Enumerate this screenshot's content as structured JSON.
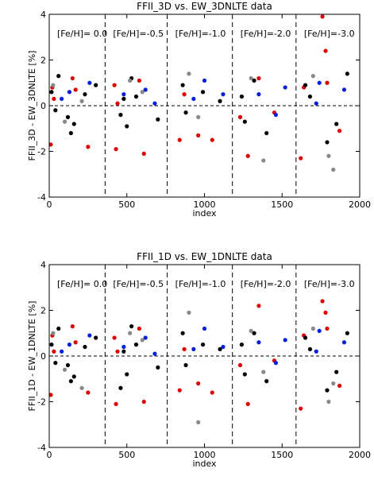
{
  "chart_data": [
    {
      "type": "scatter",
      "title": "FFII_3D vs. EW_3DNLTE data",
      "xlabel": "index",
      "ylabel": "FFII_3D - EW_3DNLTE [%]",
      "xlim": [
        0,
        2000
      ],
      "ylim": [
        -4,
        4
      ],
      "xticks": [
        0,
        500,
        1000,
        1500,
        2000
      ],
      "yticks": [
        -4,
        -2,
        0,
        2,
        4
      ],
      "vlines": [
        360,
        760,
        1180,
        1590
      ],
      "hline": 0,
      "annotations": [
        "[Fe/H]= 0.0",
        "[Fe/H]=-0.5",
        "[Fe/H]=-1.0",
        "[Fe/H]=-2.0",
        "[Fe/H]=-3.0"
      ],
      "series": [
        {
          "color": "#e00000",
          "x": [
            10,
            20,
            30,
            150,
            170,
            250,
            420,
            430,
            440,
            580,
            610,
            840,
            870,
            960,
            1050,
            1230,
            1280,
            1350,
            1450,
            1620,
            1640,
            1760,
            1780,
            1790,
            1870
          ],
          "values": [
            -1.7,
            0.8,
            0.3,
            1.2,
            0.7,
            -1.8,
            0.9,
            -1.9,
            0.1,
            1.1,
            -2.1,
            -1.5,
            0.5,
            -1.3,
            -1.5,
            -0.5,
            -2.2,
            1.2,
            -0.3,
            -2.3,
            0.8,
            3.9,
            2.4,
            1.0,
            -1.1
          ]
        },
        {
          "color": "#000000",
          "x": [
            15,
            40,
            60,
            120,
            140,
            160,
            230,
            300,
            460,
            480,
            500,
            530,
            560,
            700,
            860,
            880,
            990,
            1100,
            1240,
            1260,
            1320,
            1400,
            1650,
            1680,
            1790,
            1850,
            1920
          ],
          "values": [
            0.6,
            -0.2,
            1.3,
            -0.5,
            -1.2,
            -0.8,
            0.5,
            0.9,
            -0.4,
            0.3,
            -0.9,
            1.2,
            0.4,
            -0.6,
            0.9,
            -0.3,
            0.6,
            0.2,
            0.4,
            -0.7,
            1.1,
            -1.2,
            0.9,
            0.4,
            -1.6,
            -0.8,
            1.4
          ]
        },
        {
          "color": "#888888",
          "x": [
            25,
            100,
            210,
            520,
            600,
            900,
            960,
            1300,
            1380,
            1700,
            1800,
            1830
          ],
          "values": [
            0.9,
            -0.7,
            0.2,
            1.1,
            0.6,
            1.4,
            -0.5,
            1.2,
            -2.4,
            1.3,
            -2.2,
            -2.8
          ]
        },
        {
          "color": "#0020e0",
          "x": [
            80,
            130,
            260,
            480,
            620,
            680,
            930,
            1000,
            1120,
            1350,
            1460,
            1520,
            1720,
            1740,
            1900
          ],
          "values": [
            0.3,
            0.6,
            1.0,
            0.5,
            0.7,
            0.1,
            0.3,
            1.1,
            0.5,
            0.5,
            -0.4,
            0.8,
            0.1,
            1.0,
            0.7
          ]
        }
      ]
    },
    {
      "type": "scatter",
      "title": "FFII_1D vs. EW_1DNLTE data",
      "xlabel": "index",
      "ylabel": "FFII_1D - EW_1DNLTE [%]",
      "xlim": [
        0,
        2000
      ],
      "ylim": [
        -4,
        4
      ],
      "xticks": [
        0,
        500,
        1000,
        1500,
        2000
      ],
      "yticks": [
        -4,
        -2,
        0,
        2,
        4
      ],
      "vlines": [
        360,
        760,
        1180,
        1590
      ],
      "hline": 0,
      "annotations": [
        "[Fe/H]= 0.0",
        "[Fe/H]=-0.5",
        "[Fe/H]=-1.0",
        "[Fe/H]=-2.0",
        "[Fe/H]=-3.0"
      ],
      "series": [
        {
          "color": "#e00000",
          "x": [
            10,
            20,
            30,
            150,
            170,
            250,
            420,
            430,
            440,
            580,
            610,
            840,
            870,
            960,
            1050,
            1230,
            1280,
            1350,
            1450,
            1620,
            1640,
            1760,
            1780,
            1790,
            1870
          ],
          "values": [
            -1.7,
            0.9,
            0.2,
            1.3,
            0.6,
            -1.6,
            0.8,
            -2.1,
            0.2,
            1.2,
            -2.0,
            -1.5,
            0.3,
            -1.2,
            -1.6,
            -0.4,
            -2.1,
            2.2,
            -0.2,
            -2.3,
            0.9,
            2.4,
            1.9,
            1.2,
            -1.3
          ]
        },
        {
          "color": "#000000",
          "x": [
            15,
            40,
            60,
            120,
            140,
            160,
            230,
            300,
            460,
            480,
            500,
            530,
            560,
            700,
            860,
            880,
            990,
            1100,
            1240,
            1260,
            1320,
            1400,
            1650,
            1680,
            1790,
            1850,
            1920
          ],
          "values": [
            0.5,
            -0.3,
            1.2,
            -0.4,
            -1.1,
            -0.9,
            0.4,
            0.8,
            -1.4,
            0.2,
            -0.8,
            1.3,
            0.5,
            -0.5,
            1.0,
            -0.4,
            0.5,
            0.3,
            0.5,
            -0.8,
            1.0,
            -1.1,
            0.8,
            0.3,
            -1.5,
            -0.7,
            1.0
          ]
        },
        {
          "color": "#888888",
          "x": [
            25,
            100,
            210,
            520,
            600,
            900,
            960,
            1300,
            1380,
            1700,
            1800,
            1830
          ],
          "values": [
            1.0,
            -0.6,
            -1.4,
            1.0,
            0.7,
            1.9,
            -2.9,
            1.1,
            -0.7,
            1.2,
            -2.0,
            -1.2
          ]
        },
        {
          "color": "#0020e0",
          "x": [
            80,
            130,
            260,
            480,
            620,
            680,
            930,
            1000,
            1120,
            1350,
            1460,
            1520,
            1720,
            1740,
            1900
          ],
          "values": [
            0.2,
            0.5,
            0.9,
            0.4,
            0.8,
            0.1,
            0.3,
            1.2,
            0.4,
            0.6,
            -0.3,
            0.7,
            0.2,
            1.1,
            0.6
          ]
        }
      ]
    }
  ]
}
